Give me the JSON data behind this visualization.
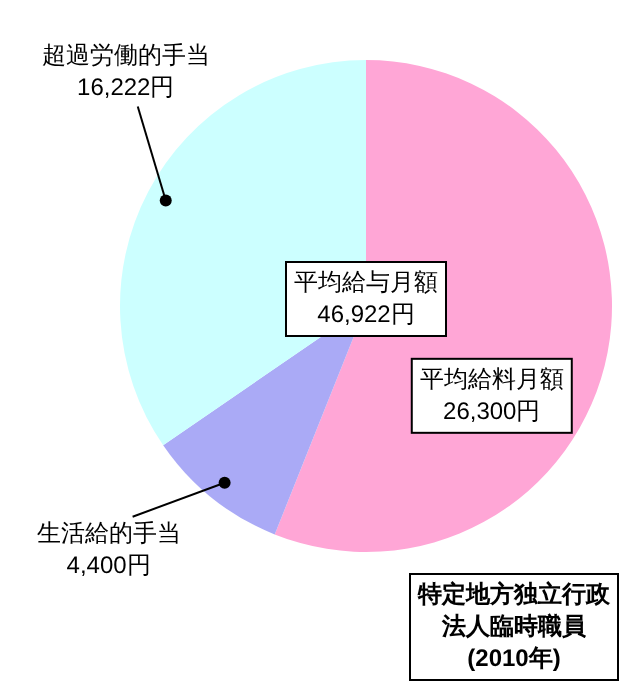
{
  "chart_data": {
    "type": "pie",
    "categories": [
      "平均給料月額",
      "生活給的手当",
      "超過労働的手当"
    ],
    "values": [
      26300,
      4400,
      16222
    ],
    "colors": [
      "#ffa6d6",
      "#aaaaf6",
      "#ccffff"
    ],
    "value_labels": [
      "26,300円",
      "4,400円",
      "16,222円"
    ],
    "annotations": [
      "平均給与月額\n46,922円",
      "特定地方独立行政法人臨時職員\n(2010年)"
    ]
  }
}
